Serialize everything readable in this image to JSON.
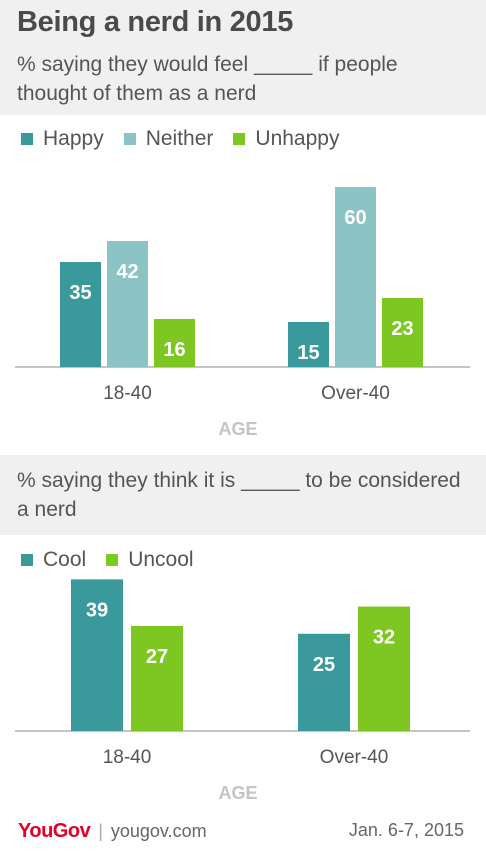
{
  "title": "Being a nerd in 2015",
  "colors": {
    "happy": "#3a9a9b",
    "neither": "#8cc4c5",
    "unhappy": "#7ec622",
    "axis": "#b0b0b0",
    "label": "#555555",
    "agelabel": "#c4c4c4"
  },
  "chart_data": [
    {
      "type": "bar",
      "subtitle": "% saying they would feel _____ if people thought of them as a nerd",
      "categories": [
        "18-40",
        "Over-40"
      ],
      "series": [
        {
          "name": "Happy",
          "values": [
            35,
            15
          ]
        },
        {
          "name": "Neither",
          "values": [
            42,
            60
          ]
        },
        {
          "name": "Unhappy",
          "values": [
            16,
            23
          ]
        }
      ],
      "xlabel": "AGE",
      "ylim": [
        0,
        65
      ],
      "grid": false,
      "legend": "top-left"
    },
    {
      "type": "bar",
      "subtitle": "% saying they think it is _____ to be considered a nerd",
      "categories": [
        "18-40",
        "Over-40"
      ],
      "series": [
        {
          "name": "Cool",
          "values": [
            39,
            25
          ]
        },
        {
          "name": "Uncool",
          "values": [
            27,
            32
          ]
        }
      ],
      "xlabel": "AGE",
      "ylim": [
        0,
        45
      ],
      "grid": false,
      "legend": "top-left"
    }
  ],
  "footer": {
    "brand": "YouGov",
    "url": "yougov.com",
    "date": "Jan. 6-7, 2015"
  }
}
